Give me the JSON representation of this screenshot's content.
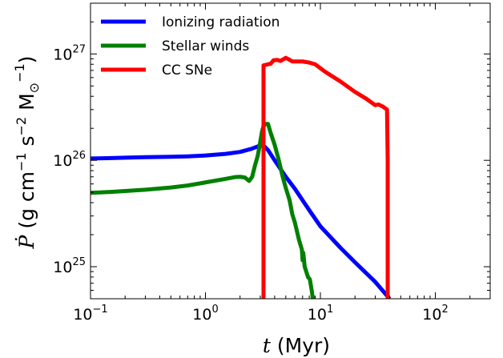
{
  "chart_data": {
    "type": "line",
    "xscale": "log",
    "yscale": "log",
    "xlim": [
      0.1,
      300
    ],
    "ylim": [
      5e+24,
      3e+27
    ],
    "grid": false,
    "legend_position": "top-left",
    "xlabel": {
      "symbol": "t",
      "text": " (Myr)"
    },
    "ylabel": {
      "symbol": "Ṗ",
      "text_before": " (g cm",
      "exp1": "−1",
      "text_mid": " s",
      "exp2": "−2",
      "text_mid2": " M",
      "subscript": "⊙",
      "exp3": "−1",
      "text_after": ")"
    },
    "xticks": [
      {
        "value": 0.1,
        "base": "10",
        "exp": "−1"
      },
      {
        "value": 1,
        "base": "10",
        "exp": "0"
      },
      {
        "value": 10,
        "base": "10",
        "exp": "1"
      },
      {
        "value": 100,
        "base": "10",
        "exp": "2"
      }
    ],
    "yticks": [
      {
        "value": 1e+25,
        "base": "10",
        "exp": "25"
      },
      {
        "value": 1e+26,
        "base": "10",
        "exp": "26"
      },
      {
        "value": 1e+27,
        "base": "10",
        "exp": "27"
      }
    ],
    "series": [
      {
        "name": "Ionizing radiation",
        "color": "#0000ff",
        "points": [
          [
            0.1,
            1.04e+26
          ],
          [
            0.15,
            1.05e+26
          ],
          [
            0.2,
            1.06e+26
          ],
          [
            0.3,
            1.07e+26
          ],
          [
            0.5,
            1.08e+26
          ],
          [
            0.7,
            1.09e+26
          ],
          [
            1.0,
            1.11e+26
          ],
          [
            1.5,
            1.15e+26
          ],
          [
            2.0,
            1.2e+26
          ],
          [
            2.5,
            1.28e+26
          ],
          [
            2.9,
            1.36e+26
          ],
          [
            3.2,
            1.38e+26
          ],
          [
            3.5,
            1.25e+26
          ],
          [
            4.0,
            1e+26
          ],
          [
            5.0,
            7e+25
          ],
          [
            6.0,
            5.4e+25
          ],
          [
            8.0,
            3.4e+25
          ],
          [
            10.0,
            2.4e+25
          ],
          [
            15.0,
            1.5e+25
          ],
          [
            20.0,
            1.1e+25
          ],
          [
            30.0,
            7.2e+24
          ],
          [
            40.0,
            5e+24
          ]
        ]
      },
      {
        "name": "Stellar winds",
        "color": "#008000",
        "points": [
          [
            0.1,
            4.95e+25
          ],
          [
            0.15,
            5.05e+25
          ],
          [
            0.2,
            5.15e+25
          ],
          [
            0.3,
            5.3e+25
          ],
          [
            0.5,
            5.55e+25
          ],
          [
            0.7,
            5.8e+25
          ],
          [
            1.0,
            6.2e+25
          ],
          [
            1.5,
            6.7e+25
          ],
          [
            1.8,
            6.95e+25
          ],
          [
            2.0,
            7e+25
          ],
          [
            2.2,
            6.9e+25
          ],
          [
            2.4,
            6.4e+25
          ],
          [
            2.55,
            7e+25
          ],
          [
            2.7,
            9e+25
          ],
          [
            2.85,
            1.1e+26
          ],
          [
            3.0,
            1.5e+26
          ],
          [
            3.1,
            1.85e+26
          ],
          [
            3.2,
            2.1e+26
          ],
          [
            3.35,
            2.2e+26
          ],
          [
            3.5,
            2.2e+26
          ],
          [
            3.7,
            1.8e+26
          ],
          [
            4.0,
            1.4e+26
          ],
          [
            4.3,
            1.05e+26
          ],
          [
            4.7,
            7e+25
          ],
          [
            5.0,
            5.5e+25
          ],
          [
            5.4,
            4.2e+25
          ],
          [
            5.7,
            3.1e+25
          ],
          [
            6.0,
            2.6e+25
          ],
          [
            6.5,
            1.8e+25
          ],
          [
            6.9,
            1.45e+25
          ],
          [
            7.0,
            1.15e+25
          ],
          [
            7.1,
            1.35e+25
          ],
          [
            7.3,
            1e+25
          ],
          [
            7.8,
            8e+24
          ],
          [
            8.1,
            7.6e+24
          ],
          [
            8.4,
            6e+24
          ],
          [
            8.6,
            5e+24
          ]
        ]
      },
      {
        "name": "CC SNe",
        "color": "#ff0000",
        "points": [
          [
            3.2,
            5e+24
          ],
          [
            3.2,
            2e+25
          ],
          [
            3.2,
            1e+26
          ],
          [
            3.2,
            4e+26
          ],
          [
            3.2,
            7.8e+26
          ],
          [
            3.5,
            8e+26
          ],
          [
            3.7,
            8.1e+26
          ],
          [
            3.9,
            8.7e+26
          ],
          [
            4.2,
            8.8e+26
          ],
          [
            4.5,
            8.6e+26
          ],
          [
            5.0,
            9.2e+26
          ],
          [
            5.3,
            8.9e+26
          ],
          [
            5.7,
            8.5e+26
          ],
          [
            7.0,
            8.5e+26
          ],
          [
            8.0,
            8.3e+26
          ],
          [
            9.0,
            8e+26
          ],
          [
            11.0,
            6.8e+26
          ],
          [
            15.0,
            5.5e+26
          ],
          [
            20.0,
            4.4e+26
          ],
          [
            25.0,
            3.8e+26
          ],
          [
            30.0,
            3.3e+26
          ],
          [
            32.0,
            3.35e+26
          ],
          [
            35.0,
            3.2e+26
          ],
          [
            38.0,
            3e+26
          ],
          [
            38.5,
            1e+26
          ],
          [
            38.5,
            2e+25
          ],
          [
            38.5,
            5e+24
          ]
        ]
      }
    ]
  }
}
